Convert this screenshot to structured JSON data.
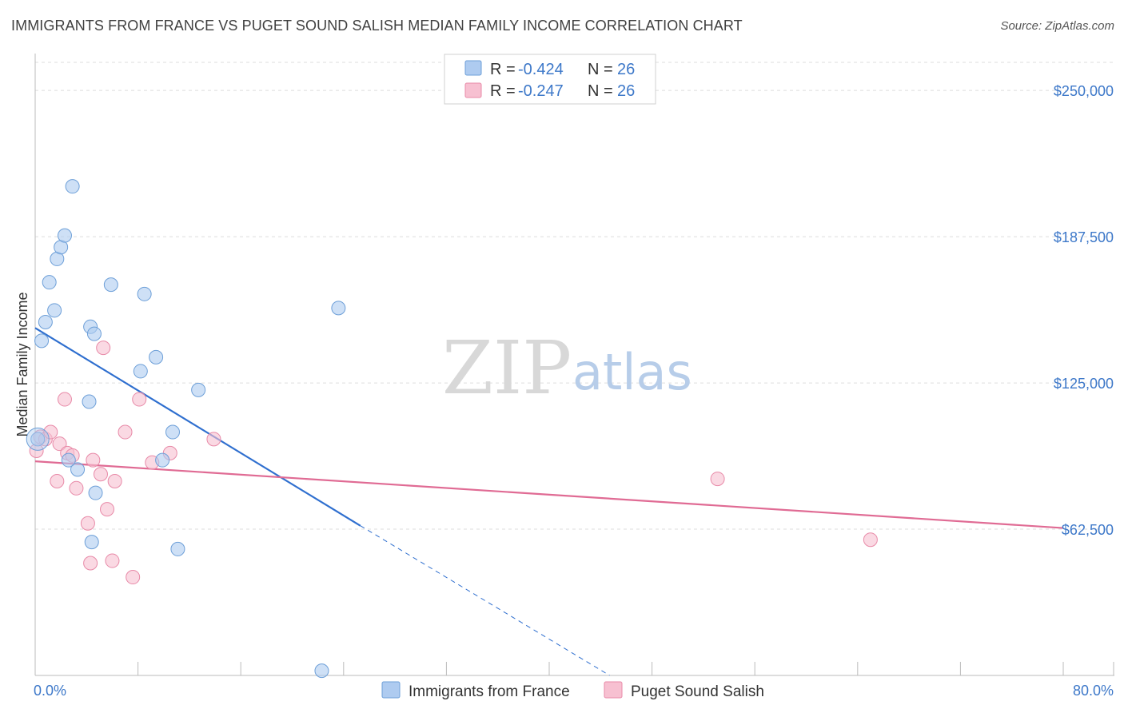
{
  "header": {
    "title": "IMMIGRANTS FROM FRANCE VS PUGET SOUND SALISH MEDIAN FAMILY INCOME CORRELATION CHART",
    "source": "Source: ZipAtlas.com"
  },
  "watermark": {
    "zip": "ZIP",
    "atlas": "atlas"
  },
  "colors": {
    "blue_fill": "#aecbf0",
    "blue_stroke": "#6d9fd8",
    "blue_line": "#2f6fcf",
    "pink_fill": "#f7c0d1",
    "pink_stroke": "#e88aa8",
    "pink_line": "#e06b94",
    "grid": "#dedede",
    "axis": "#bbbbbb",
    "accent": "#3d78c9"
  },
  "legend_top": [
    {
      "r_label": "R = ",
      "r_value": "-0.424",
      "n_label": "N = ",
      "n_value": "26"
    },
    {
      "r_label": "R = ",
      "r_value": "-0.247",
      "n_label": "N = ",
      "n_value": "26"
    }
  ],
  "chart_data": {
    "type": "scatter",
    "title": "IMMIGRANTS FROM FRANCE VS PUGET SOUND SALISH MEDIAN FAMILY INCOME CORRELATION CHART",
    "xlabel": "",
    "ylabel": "Median Family Income",
    "xlim": [
      0,
      80
    ],
    "ylim": [
      0,
      262000
    ],
    "x_tick_labels": [
      "0.0%",
      "80.0%"
    ],
    "y_ticks": [
      62500,
      125000,
      187500,
      250000
    ],
    "y_tick_labels": [
      "$62,500",
      "$125,000",
      "$187,500",
      "$250,000"
    ],
    "grid": true,
    "series": [
      {
        "name": "Immigrants from France",
        "r": -0.424,
        "n": 26,
        "points": [
          [
            0.2,
            101000
          ],
          [
            0.5,
            143000
          ],
          [
            0.8,
            151000
          ],
          [
            1.1,
            168000
          ],
          [
            1.5,
            156000
          ],
          [
            1.7,
            178000
          ],
          [
            2.0,
            183000
          ],
          [
            2.3,
            188000
          ],
          [
            2.9,
            209000
          ],
          [
            3.3,
            88000
          ],
          [
            2.6,
            92000
          ],
          [
            4.3,
            149000
          ],
          [
            4.6,
            146000
          ],
          [
            4.2,
            117000
          ],
          [
            4.7,
            78000
          ],
          [
            4.4,
            57000
          ],
          [
            5.9,
            167000
          ],
          [
            8.2,
            130000
          ],
          [
            8.5,
            163000
          ],
          [
            9.4,
            136000
          ],
          [
            9.9,
            92000
          ],
          [
            10.7,
            104000
          ],
          [
            11.1,
            54000
          ],
          [
            12.7,
            122000
          ],
          [
            23.6,
            157000
          ],
          [
            22.3,
            2000
          ]
        ],
        "trend": {
          "x0": 0,
          "y0": 148500,
          "x1": 25.3,
          "y1": 64000,
          "dashed_to_x": 44.7,
          "dashed_to_y": 0
        }
      },
      {
        "name": "Puget Sound Salish",
        "r": -0.247,
        "n": 26,
        "points": [
          [
            0.1,
            96000
          ],
          [
            0.4,
            102000
          ],
          [
            0.8,
            101000
          ],
          [
            1.2,
            104000
          ],
          [
            1.7,
            83000
          ],
          [
            1.9,
            99000
          ],
          [
            2.3,
            118000
          ],
          [
            2.5,
            95000
          ],
          [
            2.9,
            94000
          ],
          [
            3.2,
            80000
          ],
          [
            4.1,
            65000
          ],
          [
            4.3,
            48000
          ],
          [
            4.5,
            92000
          ],
          [
            5.1,
            86000
          ],
          [
            5.3,
            140000
          ],
          [
            5.6,
            71000
          ],
          [
            6.0,
            49000
          ],
          [
            6.2,
            83000
          ],
          [
            7.0,
            104000
          ],
          [
            7.6,
            42000
          ],
          [
            8.1,
            118000
          ],
          [
            9.1,
            91000
          ],
          [
            10.5,
            95000
          ],
          [
            13.9,
            101000
          ],
          [
            53.1,
            84000
          ],
          [
            65.0,
            58000
          ]
        ],
        "trend": {
          "x0": 0,
          "y0": 91500,
          "x1": 80,
          "y1": 63000
        }
      }
    ]
  },
  "legend_bottom": [
    {
      "label": "Immigrants from France"
    },
    {
      "label": "Puget Sound Salish"
    }
  ]
}
